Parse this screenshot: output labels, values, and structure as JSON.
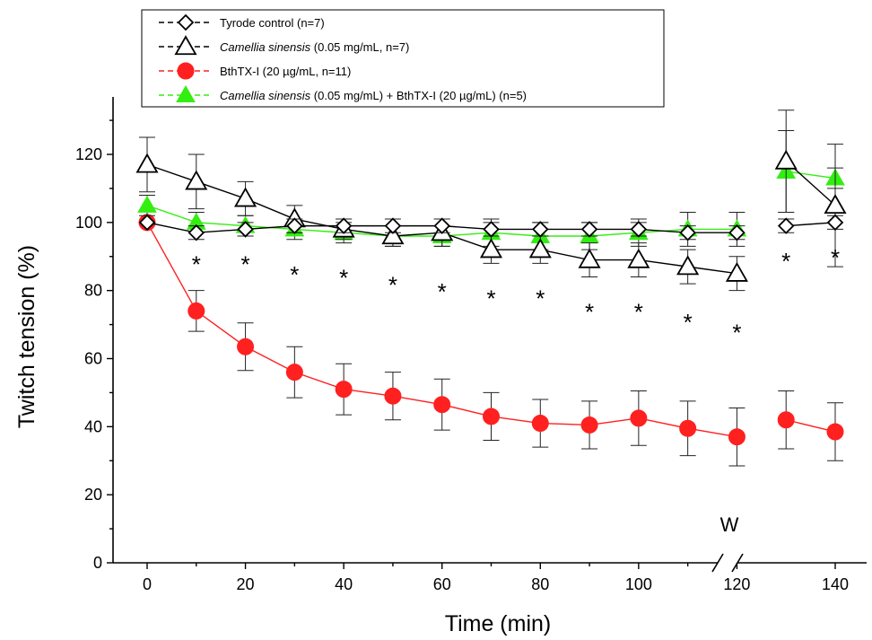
{
  "chart_data": {
    "type": "line",
    "xlabel": "Time (min)",
    "ylabel": "Twitch tension (%)",
    "xlim": [
      -5,
      145
    ],
    "ylim": [
      0,
      135
    ],
    "x_ticks": [
      0,
      20,
      40,
      60,
      80,
      100,
      120,
      140
    ],
    "y_ticks": [
      0,
      20,
      40,
      60,
      80,
      100,
      120
    ],
    "axis_break_label": "W",
    "legend_position": "top-left",
    "series": [
      {
        "name": "Tyrode control (n=7)",
        "name_parts": [
          {
            "text": "Tyrode control (n=7)",
            "italic": false
          }
        ],
        "marker": "diamond-open",
        "color": "#000000",
        "points": [
          {
            "x": 0,
            "y": 100,
            "err": 0
          },
          {
            "x": 10,
            "y": 97,
            "err": 2
          },
          {
            "x": 20,
            "y": 98,
            "err": 2
          },
          {
            "x": 30,
            "y": 99,
            "err": 2
          },
          {
            "x": 40,
            "y": 99,
            "err": 2
          },
          {
            "x": 50,
            "y": 99,
            "err": 2
          },
          {
            "x": 60,
            "y": 99,
            "err": 2
          },
          {
            "x": 70,
            "y": 98,
            "err": 2
          },
          {
            "x": 80,
            "y": 98,
            "err": 2
          },
          {
            "x": 90,
            "y": 98,
            "err": 2
          },
          {
            "x": 100,
            "y": 98,
            "err": 2
          },
          {
            "x": 110,
            "y": 97,
            "err": 2
          },
          {
            "x": 120,
            "y": 97,
            "err": 2
          },
          {
            "x": 130,
            "y": 99,
            "err": 2
          },
          {
            "x": 140,
            "y": 100,
            "err": 2
          }
        ]
      },
      {
        "name": "Camellia sinensis (0.05 mg/mL, n=7)",
        "name_parts": [
          {
            "text": "Camellia sinensis",
            "italic": true
          },
          {
            "text": " (0.05 mg/mL, n=7)",
            "italic": false
          }
        ],
        "marker": "triangle-open",
        "color": "#000000",
        "points": [
          {
            "x": 0,
            "y": 117,
            "err": 8
          },
          {
            "x": 10,
            "y": 112,
            "err": 8
          },
          {
            "x": 20,
            "y": 107,
            "err": 5
          },
          {
            "x": 30,
            "y": 101,
            "err": 4
          },
          {
            "x": 40,
            "y": 98,
            "err": 3
          },
          {
            "x": 50,
            "y": 96,
            "err": 3
          },
          {
            "x": 60,
            "y": 97,
            "err": 4
          },
          {
            "x": 70,
            "y": 92,
            "err": 4
          },
          {
            "x": 80,
            "y": 92,
            "err": 4
          },
          {
            "x": 90,
            "y": 89,
            "err": 5
          },
          {
            "x": 100,
            "y": 89,
            "err": 5
          },
          {
            "x": 110,
            "y": 87,
            "err": 5
          },
          {
            "x": 120,
            "y": 85,
            "err": 5
          },
          {
            "x": 130,
            "y": 118,
            "err": 15
          },
          {
            "x": 140,
            "y": 105,
            "err": 18
          }
        ]
      },
      {
        "name": "BthTX-I (20 µg/mL, n=11)",
        "name_parts": [
          {
            "text": "BthTX-I (20 µg/mL, n=11)",
            "italic": false
          }
        ],
        "marker": "circle-filled",
        "color": "#ff2020",
        "points": [
          {
            "x": 0,
            "y": 100,
            "err": 0
          },
          {
            "x": 10,
            "y": 74,
            "err": 6
          },
          {
            "x": 20,
            "y": 63.5,
            "err": 7
          },
          {
            "x": 30,
            "y": 56,
            "err": 7.5
          },
          {
            "x": 40,
            "y": 51,
            "err": 7.5
          },
          {
            "x": 50,
            "y": 49,
            "err": 7
          },
          {
            "x": 60,
            "y": 46.5,
            "err": 7.5
          },
          {
            "x": 70,
            "y": 43,
            "err": 7
          },
          {
            "x": 80,
            "y": 41,
            "err": 7
          },
          {
            "x": 90,
            "y": 40.5,
            "err": 7
          },
          {
            "x": 100,
            "y": 42.5,
            "err": 8
          },
          {
            "x": 110,
            "y": 39.5,
            "err": 8
          },
          {
            "x": 120,
            "y": 37,
            "err": 8.5
          },
          {
            "x": 130,
            "y": 42,
            "err": 8.5
          },
          {
            "x": 140,
            "y": 38.5,
            "err": 8.5
          }
        ]
      },
      {
        "name": "Camellia sinensis (0.05 mg/mL) + BthTX-I (20 µg/mL) (n=5)",
        "name_parts": [
          {
            "text": "Camellia sinensis",
            "italic": true
          },
          {
            "text": " (0.05 mg/mL) + BthTX-I (20 µg/mL) (n=5)",
            "italic": false
          }
        ],
        "marker": "triangle-filled",
        "color": "#33ee11",
        "points": [
          {
            "x": 0,
            "y": 105,
            "err": 3
          },
          {
            "x": 10,
            "y": 100,
            "err": 3
          },
          {
            "x": 20,
            "y": 99,
            "err": 3
          },
          {
            "x": 30,
            "y": 98,
            "err": 3
          },
          {
            "x": 40,
            "y": 97,
            "err": 3
          },
          {
            "x": 50,
            "y": 96,
            "err": 3
          },
          {
            "x": 60,
            "y": 96,
            "err": 3
          },
          {
            "x": 70,
            "y": 97,
            "err": 4
          },
          {
            "x": 80,
            "y": 96,
            "err": 4
          },
          {
            "x": 90,
            "y": 96,
            "err": 4
          },
          {
            "x": 100,
            "y": 97,
            "err": 4
          },
          {
            "x": 110,
            "y": 98,
            "err": 5
          },
          {
            "x": 120,
            "y": 98,
            "err": 5
          },
          {
            "x": 130,
            "y": 115,
            "err": 12
          },
          {
            "x": 140,
            "y": 113,
            "err": 3
          }
        ]
      }
    ],
    "annotations": [
      {
        "text": "*",
        "x": 10,
        "y": 89
      },
      {
        "text": "*",
        "x": 20,
        "y": 89
      },
      {
        "text": "*",
        "x": 30,
        "y": 86
      },
      {
        "text": "*",
        "x": 40,
        "y": 85
      },
      {
        "text": "*",
        "x": 50,
        "y": 83
      },
      {
        "text": "*",
        "x": 60,
        "y": 81
      },
      {
        "text": "*",
        "x": 70,
        "y": 79
      },
      {
        "text": "*",
        "x": 80,
        "y": 79
      },
      {
        "text": "*",
        "x": 90,
        "y": 75
      },
      {
        "text": "*",
        "x": 100,
        "y": 75
      },
      {
        "text": "*",
        "x": 110,
        "y": 72
      },
      {
        "text": "*",
        "x": 120,
        "y": 69
      },
      {
        "text": "*",
        "x": 130,
        "y": 90
      },
      {
        "text": "*",
        "x": 140,
        "y": 91
      }
    ]
  }
}
